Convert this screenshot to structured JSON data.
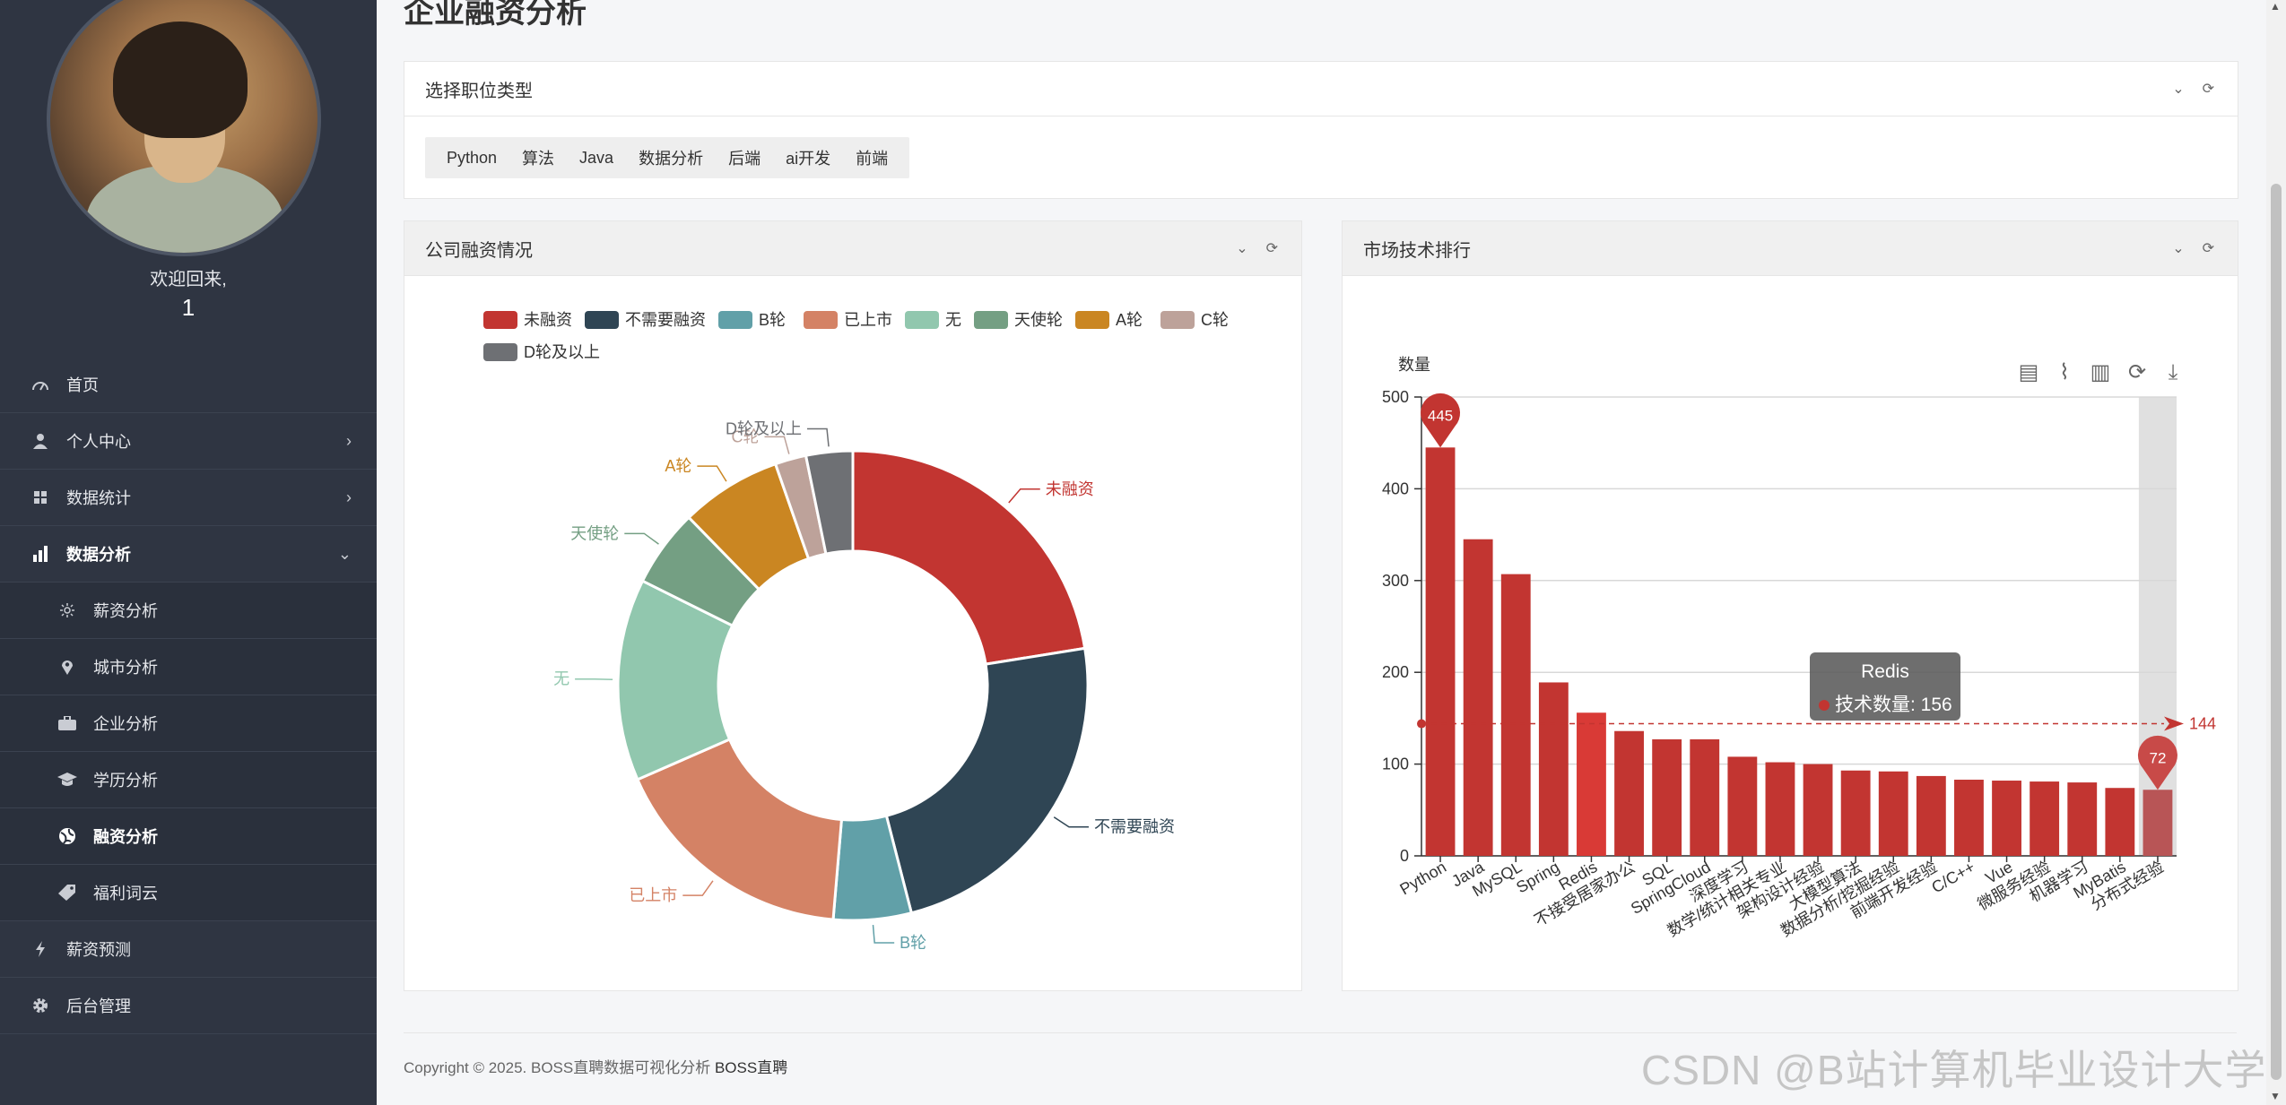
{
  "sidebar": {
    "welcome": "欢迎回来,",
    "user_id": "1",
    "items": [
      {
        "label": "首页",
        "icon": "speedometer-icon",
        "name": "nav-home"
      },
      {
        "label": "个人中心",
        "icon": "user-icon",
        "name": "nav-profile",
        "chevron": "›"
      },
      {
        "label": "数据统计",
        "icon": "grid-icon",
        "name": "nav-data-stats",
        "chevron": "›"
      },
      {
        "label": "数据分析",
        "icon": "bar-chart-icon",
        "name": "nav-data-analysis",
        "chevron": "⌄"
      }
    ],
    "sub_items": [
      {
        "label": "薪资分析",
        "icon": "sun-icon",
        "name": "nav-salary-analysis"
      },
      {
        "label": "城市分析",
        "icon": "map-pin-icon",
        "name": "nav-city-analysis"
      },
      {
        "label": "企业分析",
        "icon": "briefcase-icon",
        "name": "nav-company-analysis"
      },
      {
        "label": "学历分析",
        "icon": "graduation-cap-icon",
        "name": "nav-education-analysis"
      },
      {
        "label": "融资分析",
        "icon": "globe-icon",
        "name": "nav-funding-analysis"
      },
      {
        "label": "福利词云",
        "icon": "tag-icon",
        "name": "nav-benefit-cloud"
      }
    ],
    "bottom_items": [
      {
        "label": "薪资预测",
        "icon": "lightning-icon",
        "name": "nav-salary-forecast"
      },
      {
        "label": "后台管理",
        "icon": "gear-icon",
        "name": "nav-admin"
      }
    ]
  },
  "page": {
    "title": "企业融资分析"
  },
  "position_panel": {
    "title": "选择职位类型",
    "tabs": [
      "Python",
      "算法",
      "Java",
      "数据分析",
      "后端",
      "ai开发",
      "前端"
    ]
  },
  "funding_panel": {
    "title": "公司融资情况"
  },
  "tech_panel": {
    "title": "市场技术排行",
    "tooltip_title": "Redis",
    "tooltip_label": "技术数量: 156"
  },
  "footer": {
    "text": "Copyright © 2025. BOSS直聘数据可视化分析 ",
    "brand": "BOSS直聘"
  },
  "watermark": "CSDN @B站计算机毕业设计大学",
  "colors": {
    "sidebar_bg": "#2f3542",
    "bar_red": "#c23531"
  },
  "chart_data": [
    {
      "type": "pie",
      "donut": true,
      "legend_placement": "top",
      "categories": [
        "未融资",
        "不需要融资",
        "B轮",
        "已上市",
        "无",
        "天使轮",
        "A轮",
        "C轮",
        "D轮及以上"
      ],
      "values": [
        21,
        22,
        5,
        16,
        13,
        5,
        6.5,
        2,
        3
      ],
      "colors": [
        "#c23531",
        "#2f4554",
        "#61a0a8",
        "#d48265",
        "#91c7ae",
        "#749f83",
        "#ca8622",
        "#bda29a",
        "#6e7074"
      ]
    },
    {
      "type": "bar",
      "ylabel": "数量",
      "ylim": [
        0,
        500
      ],
      "yticks": [
        0,
        100,
        200,
        300,
        400,
        500
      ],
      "categories": [
        "Python",
        "Java",
        "MySQL",
        "Spring",
        "Redis",
        "不接受居家办公",
        "SQL",
        "SpringCloud",
        "深度学习",
        "数学/统计相关专业",
        "架构设计经验",
        "大模型算法",
        "数据分析/挖掘经验",
        "前端开发经验",
        "C/C++",
        "Vue",
        "微服务经验",
        "机器学习",
        "MyBatis",
        "分布式经验"
      ],
      "values": [
        445,
        345,
        307,
        189,
        156,
        136,
        127,
        127,
        108,
        102,
        100,
        93,
        92,
        87,
        83,
        82,
        81,
        80,
        74,
        72
      ],
      "max_marker": 445,
      "min_marker": 72,
      "average_line": 144,
      "highlighted": "Redis",
      "grid": true
    }
  ]
}
